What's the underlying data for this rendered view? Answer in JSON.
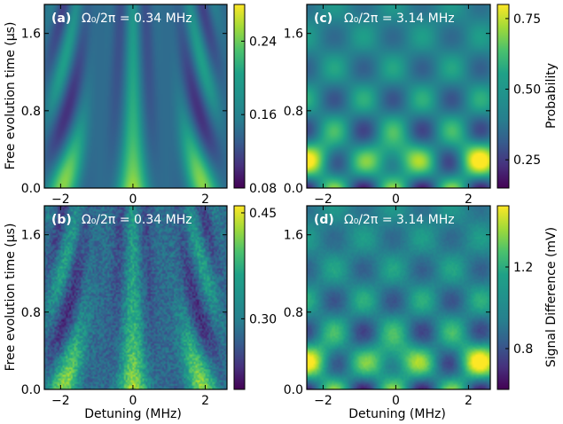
{
  "figure": {
    "shared": {
      "xlabel": "Detuning (MHz)",
      "ylabel": "Free evolution time (μs)",
      "xlim": [
        -2.45,
        2.6
      ],
      "ylim": [
        0.0,
        1.9
      ],
      "x_ticks": [
        -2,
        0,
        2
      ],
      "x_tick_labels": [
        "−2",
        "0",
        "2"
      ],
      "y_ticks": [
        0.0,
        0.8,
        1.6
      ],
      "y_tick_labels": [
        "0.0",
        "0.8",
        "1.6"
      ]
    },
    "colorbar_labels": {
      "top": "Probability",
      "bottom": "Signal Difference (mV)"
    }
  },
  "chart_data": [
    {
      "type": "heatmap",
      "id": "a",
      "tag": "(a)",
      "annotation": "Ω₀/2π = 0.34 MHz",
      "xlabel": "",
      "ylabel": "Free evolution time (μs)",
      "xlim": [
        -2.45,
        2.6
      ],
      "ylim": [
        0.0,
        1.9
      ],
      "x_ticks": [
        -2,
        0,
        2
      ],
      "y_ticks": [
        0.0,
        0.8,
        1.6
      ],
      "rabi_MHz": 0.34,
      "noise": 0.0,
      "colorbar": {
        "min": 0.08,
        "max": 0.28,
        "ticks": [
          0.08,
          0.16,
          0.24
        ],
        "tick_labels": [
          "0.08",
          "0.16",
          "0.24"
        ],
        "label": ""
      }
    },
    {
      "type": "heatmap",
      "id": "c",
      "tag": "(c)",
      "annotation": "Ω₀/2π = 3.14 MHz",
      "xlabel": "",
      "ylabel": "",
      "xlim": [
        -2.45,
        2.6
      ],
      "ylim": [
        0.0,
        1.9
      ],
      "x_ticks": [
        -2,
        0,
        2
      ],
      "y_ticks": [
        0.0,
        0.8,
        1.6
      ],
      "rabi_MHz": 3.14,
      "noise": 0.0,
      "colorbar": {
        "min": 0.15,
        "max": 0.8,
        "ticks": [
          0.25,
          0.5,
          0.75
        ],
        "tick_labels": [
          "0.25",
          "0.50",
          "0.75"
        ],
        "label": "Probability"
      }
    },
    {
      "type": "heatmap",
      "id": "b",
      "tag": "(b)",
      "annotation": "Ω₀/2π = 0.34 MHz",
      "xlabel": "Detuning (MHz)",
      "ylabel": "Free evolution time (μs)",
      "xlim": [
        -2.45,
        2.6
      ],
      "ylim": [
        0.0,
        1.9
      ],
      "x_ticks": [
        -2,
        0,
        2
      ],
      "y_ticks": [
        0.0,
        0.8,
        1.6
      ],
      "rabi_MHz": 0.34,
      "noise": 0.22,
      "colorbar": {
        "min": 0.2,
        "max": 0.46,
        "ticks": [
          0.3,
          0.45
        ],
        "tick_labels": [
          "0.30",
          "0.45"
        ],
        "label": ""
      }
    },
    {
      "type": "heatmap",
      "id": "d",
      "tag": "(d)",
      "annotation": "Ω₀/2π = 3.14 MHz",
      "xlabel": "Detuning (MHz)",
      "ylabel": "",
      "xlim": [
        -2.45,
        2.6
      ],
      "ylim": [
        0.0,
        1.9
      ],
      "x_ticks": [
        -2,
        0,
        2
      ],
      "y_ticks": [
        0.0,
        0.8,
        1.6
      ],
      "rabi_MHz": 3.14,
      "noise": 0.04,
      "colorbar": {
        "min": 0.6,
        "max": 1.5,
        "ticks": [
          0.8,
          1.2
        ],
        "tick_labels": [
          "0.8",
          "1.2"
        ],
        "label": "Signal Difference (mV)"
      }
    }
  ]
}
